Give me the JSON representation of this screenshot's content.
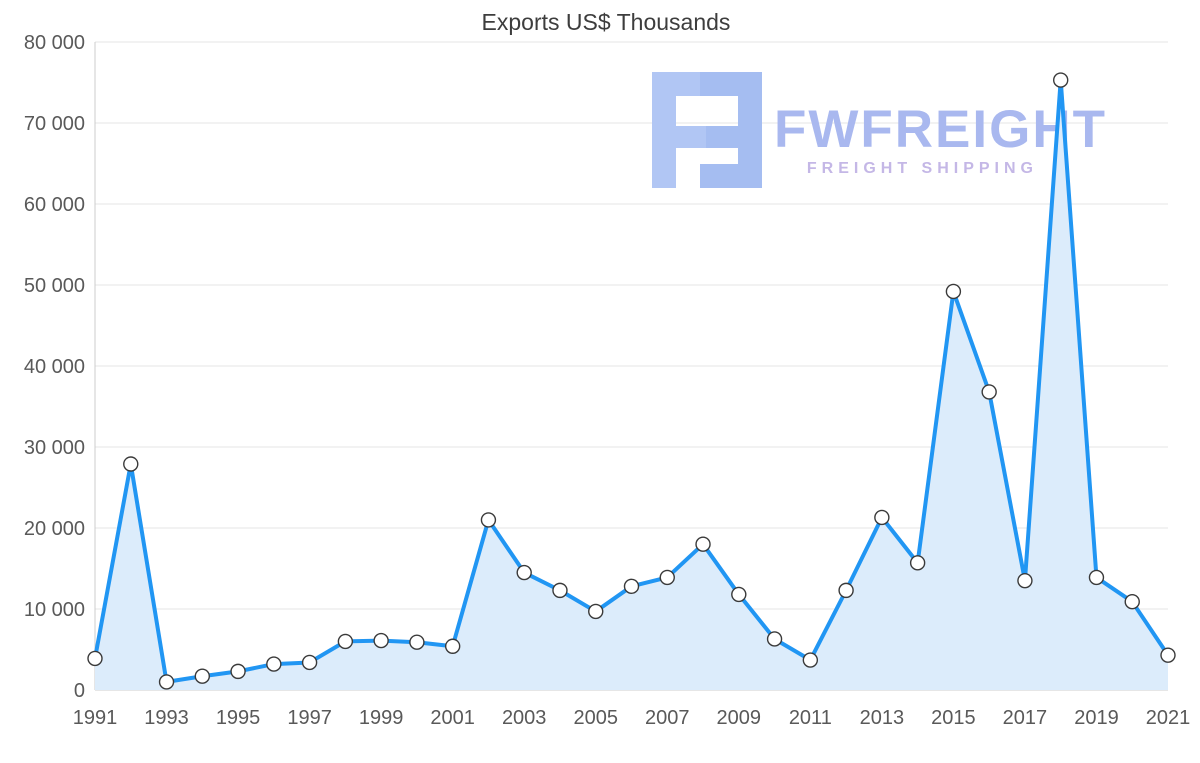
{
  "chart_data": {
    "type": "area",
    "title": "Exports US$ Thousands",
    "xlabel": "",
    "ylabel": "",
    "x": [
      1991,
      1992,
      1993,
      1994,
      1995,
      1996,
      1997,
      1998,
      1999,
      2000,
      2001,
      2002,
      2003,
      2004,
      2005,
      2006,
      2007,
      2008,
      2009,
      2010,
      2011,
      2012,
      2013,
      2014,
      2015,
      2016,
      2017,
      2018,
      2019,
      2020,
      2021
    ],
    "values": [
      3900,
      27900,
      1000,
      1700,
      2300,
      3200,
      3400,
      6000,
      6100,
      5900,
      5400,
      21000,
      14500,
      12300,
      9700,
      12800,
      13900,
      18000,
      11800,
      6300,
      3700,
      12300,
      21300,
      15700,
      49200,
      36800,
      13500,
      75300,
      13900,
      10900,
      4300
    ],
    "ylim": [
      0,
      80000
    ],
    "ytick_values": [
      0,
      10000,
      20000,
      30000,
      40000,
      50000,
      60000,
      70000,
      80000
    ],
    "ytick_labels": [
      "0",
      "10 000",
      "20 000",
      "30 000",
      "40 000",
      "50 000",
      "60 000",
      "70 000",
      "80 000"
    ],
    "xtick_values": [
      1991,
      1993,
      1995,
      1997,
      1999,
      2001,
      2003,
      2005,
      2007,
      2009,
      2011,
      2013,
      2015,
      2017,
      2019,
      2021
    ],
    "grid": true,
    "legend": "none",
    "colors": {
      "line": "#2196f3",
      "fill": "#dcecfb",
      "marker_fill": "#ffffff",
      "marker_stroke": "#3a3a3a",
      "grid": "#e6e6e6",
      "axis": "#cccccc",
      "label": "#595959",
      "title": "#3d3d3d"
    }
  },
  "watermark": {
    "brand": "FWFREIGHT",
    "tagline": "FREIGHT SHIPPING",
    "brand_color": "#a9b8ef",
    "tagline_color": "#c4b7e6",
    "logo_color": "#b1c6f4"
  }
}
